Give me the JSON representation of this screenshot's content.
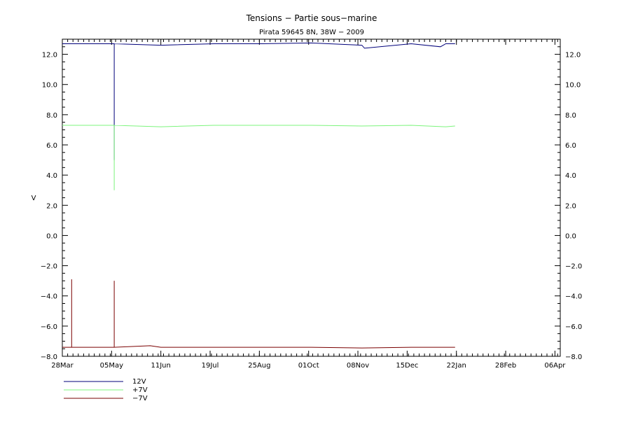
{
  "chart_data": {
    "type": "line",
    "title": "Tensions − Partie sous−marine",
    "subtitle": "Pirata 59645 8N, 38W − 2009",
    "xlabel": "",
    "ylabel": "V",
    "x_tick_labels": [
      "28Mar",
      "05May",
      "11Jun",
      "19Jul",
      "25Aug",
      "01Oct",
      "08Nov",
      "15Dec",
      "22Jan",
      "28Feb",
      "06Apr"
    ],
    "y_tick_labels": [
      "−8.0",
      "−6.0",
      "−4.0",
      "−2.0",
      "0.0",
      "2.0",
      "4.0",
      "6.0",
      "8.0",
      "10.0",
      "12.0"
    ],
    "y_tick_values": [
      -8,
      -6,
      -4,
      -2,
      0,
      2,
      4,
      6,
      8,
      10,
      12
    ],
    "xlim": [
      "2009-03-28",
      "2010-04-06"
    ],
    "ylim": [
      -8,
      13
    ],
    "grid": false,
    "legend": "bottom-left, below plot",
    "series": [
      {
        "name": "12V",
        "color": "#00007a",
        "x": [
          "2009-03-28",
          "2009-05-06",
          "2009-05-06",
          "2009-05-06",
          "2009-06-10",
          "2009-07-20",
          "2009-08-25",
          "2009-10-01",
          "2009-11-08",
          "2009-11-10",
          "2009-12-15",
          "2010-01-06",
          "2010-01-10",
          "2010-01-17"
        ],
        "y": [
          12.7,
          12.7,
          5.0,
          12.7,
          12.6,
          12.7,
          12.7,
          12.75,
          12.6,
          12.4,
          12.7,
          12.5,
          12.7,
          12.7
        ]
      },
      {
        "name": "+7V",
        "color": "#7cf47c",
        "x": [
          "2009-03-28",
          "2009-05-06",
          "2009-05-06",
          "2009-05-06",
          "2009-06-10",
          "2009-07-20",
          "2009-08-25",
          "2009-10-01",
          "2009-11-08",
          "2009-12-15",
          "2010-01-10",
          "2010-01-17"
        ],
        "y": [
          7.3,
          7.3,
          3.0,
          7.3,
          7.2,
          7.3,
          7.3,
          7.3,
          7.25,
          7.3,
          7.2,
          7.25
        ]
      },
      {
        "name": "−7V",
        "color": "#7a0000",
        "x": [
          "2009-03-28",
          "2009-04-04",
          "2009-04-04",
          "2009-04-04",
          "2009-05-06",
          "2009-05-06",
          "2009-05-06",
          "2009-06-02",
          "2009-06-10",
          "2009-07-20",
          "2009-08-25",
          "2009-10-01",
          "2009-11-08",
          "2009-12-15",
          "2010-01-10",
          "2010-01-17"
        ],
        "y": [
          -7.4,
          -7.4,
          -2.9,
          -7.4,
          -7.4,
          -3.0,
          -7.4,
          -7.3,
          -7.4,
          -7.4,
          -7.4,
          -7.4,
          -7.45,
          -7.4,
          -7.4,
          -7.4
        ]
      }
    ]
  }
}
